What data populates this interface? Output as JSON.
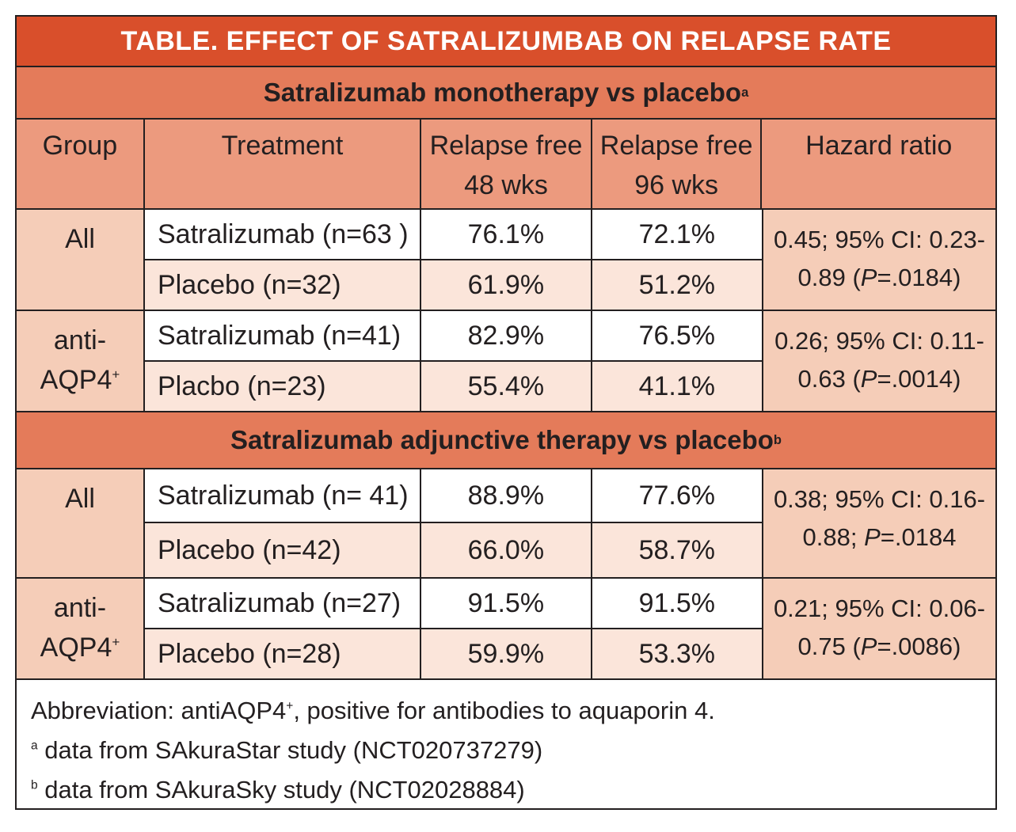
{
  "title": "TABLE.  EFFECT OF SATRALIZUMBAB ON RELAPSE RATE",
  "section1": {
    "label": "Satralizumab monotherapy vs placebo",
    "sup": "a"
  },
  "section2": {
    "label": "Satralizumab adjunctive therapy vs placebo",
    "sup": "b"
  },
  "headers": {
    "group": "Group",
    "treatment": "Treatment",
    "rf48_line1": "Relapse free",
    "rf48_line2": "48 wks",
    "rf96_line1": "Relapse free",
    "rf96_line2": "96 wks",
    "hazard": "Hazard ratio"
  },
  "mono": {
    "all": {
      "group": "All",
      "rows": [
        {
          "treatment": "Satralizumab (n=63 )",
          "rf48": "76.1%",
          "rf96": "72.1%"
        },
        {
          "treatment": "Placebo (n=32)",
          "rf48": "61.9%",
          "rf96": "51.2%"
        }
      ],
      "hr_line1": "0.45; 95% CI: 0.23-",
      "hr_line2_pre": "0.89 (",
      "hr_p": "P",
      "hr_line2_post": "=.0184)"
    },
    "aqp4": {
      "group_line1": "anti-",
      "group_line2": "AQP4",
      "group_sup": "+",
      "rows": [
        {
          "treatment": "Satralizumab (n=41)",
          "rf48": "82.9%",
          "rf96": "76.5%"
        },
        {
          "treatment": "Placbo (n=23)",
          "rf48": "55.4%",
          "rf96": "41.1%"
        }
      ],
      "hr_line1": "0.26; 95% CI: 0.11-",
      "hr_line2_pre": "0.63 (",
      "hr_p": "P",
      "hr_line2_post": "=.0014)"
    }
  },
  "adj": {
    "all": {
      "group": "All",
      "rows": [
        {
          "treatment": "Satralizumab (n= 41)",
          "rf48": "88.9%",
          "rf96": "77.6%"
        },
        {
          "treatment": "Placebo (n=42)",
          "rf48": "66.0%",
          "rf96": "58.7%"
        }
      ],
      "hr_line1": "0.38; 95% CI: 0.16-",
      "hr_line2_pre": "0.88; ",
      "hr_p": "P",
      "hr_line2_post": "=.0184"
    },
    "aqp4": {
      "group_line1": "anti-",
      "group_line2": "AQP4",
      "group_sup": "+",
      "rows": [
        {
          "treatment": "Satralizumab (n=27)",
          "rf48": "91.5%",
          "rf96": "91.5%"
        },
        {
          "treatment": "Placebo (n=28)",
          "rf48": "59.9%",
          "rf96": "53.3%"
        }
      ],
      "hr_line1": "0.21; 95% CI: 0.06-",
      "hr_line2_pre": "0.75 (",
      "hr_p": "P",
      "hr_line2_post": "=.0086)"
    }
  },
  "footnotes": {
    "abbrev_pre": "Abbreviation: antiAQP4",
    "abbrev_sup": "+",
    "abbrev_post": ", positive for antibodies to aquaporin 4.",
    "a_mark": "a",
    "a_text": " data from SAkuraStar study (NCT020737279)",
    "b_mark": "b",
    "b_text": " data from SAkuraSky study (NCT02028884)"
  },
  "colors": {
    "title_bg": "#d94f2b",
    "section_bg": "#e47b5a",
    "header_bg": "#ec9a7e",
    "group_bg": "#f5cdb8",
    "alt_row_bg": "#fbe5da"
  }
}
